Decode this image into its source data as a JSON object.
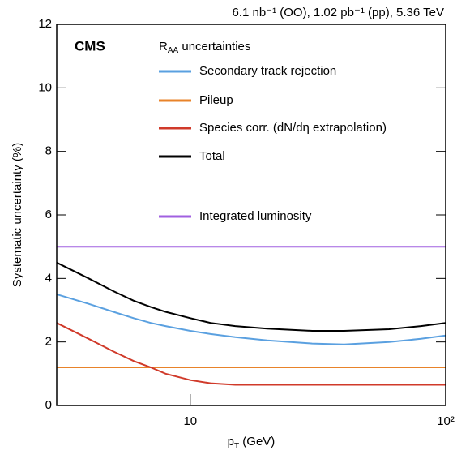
{
  "chart_data": {
    "type": "line",
    "title": "6.1 nb⁻¹ (OO), 1.02 pb⁻¹ (pp), 5.36 TeV",
    "experiment": "CMS",
    "legend_title": [
      "R",
      "AA",
      " uncertainties"
    ],
    "xlabel": [
      "p",
      "T",
      " (GeV)"
    ],
    "ylabel": "Systematic uncertainty (%)",
    "xlog": true,
    "xlim": [
      3,
      100
    ],
    "ylim": [
      0,
      12
    ],
    "xticks": [
      10,
      {
        "value": 100,
        "label": "10²"
      }
    ],
    "yticks": [
      0,
      2,
      4,
      6,
      8,
      10,
      12
    ],
    "x": [
      3,
      4,
      5,
      6,
      7,
      8,
      10,
      12,
      15,
      20,
      30,
      40,
      60,
      80,
      100
    ],
    "series": [
      {
        "name": "Secondary track rejection",
        "color": "#5aa0e0",
        "values": [
          3.5,
          3.2,
          2.95,
          2.75,
          2.6,
          2.5,
          2.35,
          2.25,
          2.15,
          2.05,
          1.95,
          1.92,
          2.0,
          2.1,
          2.2
        ]
      },
      {
        "name": "Pileup",
        "color": "#e8832a",
        "values": [
          1.2,
          1.2,
          1.2,
          1.2,
          1.2,
          1.2,
          1.2,
          1.2,
          1.2,
          1.2,
          1.2,
          1.2,
          1.2,
          1.2,
          1.2
        ]
      },
      {
        "name": "Species corr. (dN/dη extrapolation)",
        "color": "#d03a2a",
        "values": [
          2.6,
          2.1,
          1.7,
          1.4,
          1.2,
          1.0,
          0.8,
          0.7,
          0.65,
          0.65,
          0.65,
          0.65,
          0.65,
          0.65,
          0.65
        ]
      },
      {
        "name": "Total",
        "color": "#000000",
        "values": [
          4.5,
          4.0,
          3.6,
          3.3,
          3.1,
          2.95,
          2.75,
          2.6,
          2.5,
          2.42,
          2.35,
          2.35,
          2.4,
          2.5,
          2.6
        ]
      },
      {
        "name": "Integrated luminosity",
        "color": "#a060e0",
        "values": [
          5.0,
          5.0,
          5.0,
          5.0,
          5.0,
          5.0,
          5.0,
          5.0,
          5.0,
          5.0,
          5.0,
          5.0,
          5.0,
          5.0,
          5.0
        ]
      }
    ]
  }
}
